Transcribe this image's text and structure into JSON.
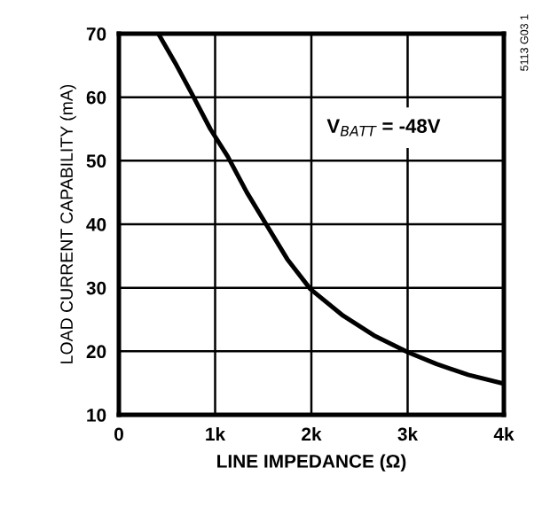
{
  "chart_data": {
    "type": "line",
    "xlabel": "LINE IMPEDANCE (Ω)",
    "ylabel": "LOAD CURRENT CAPABILITY (mA)",
    "x": [
      410,
      600,
      760,
      950,
      1130,
      1330,
      1530,
      1750,
      1990,
      2330,
      2650,
      3010,
      3300,
      3630,
      4000
    ],
    "series": [
      {
        "color": "#000000",
        "values": [
          70,
          65,
          60.5,
          55,
          50.7,
          45,
          40,
          34.5,
          29.8,
          25.6,
          22.5,
          19.8,
          18,
          16.3,
          14.9
        ]
      }
    ],
    "xlim": [
      0,
      4000
    ],
    "ylim": [
      10,
      70
    ],
    "xticks": [
      0,
      {
        "value": 1000,
        "label": "1k"
      },
      {
        "value": 2000,
        "label": "2k"
      },
      {
        "value": 3000,
        "label": "3k"
      },
      {
        "value": 4000,
        "label": "4k"
      }
    ],
    "yticks": [
      10,
      20,
      30,
      40,
      50,
      60,
      70
    ],
    "grid": true,
    "marker": "none",
    "line_style": "solid",
    "annotations": [
      "V$_{BATT}$ = -48V",
      "5113 G03 1"
    ]
  }
}
